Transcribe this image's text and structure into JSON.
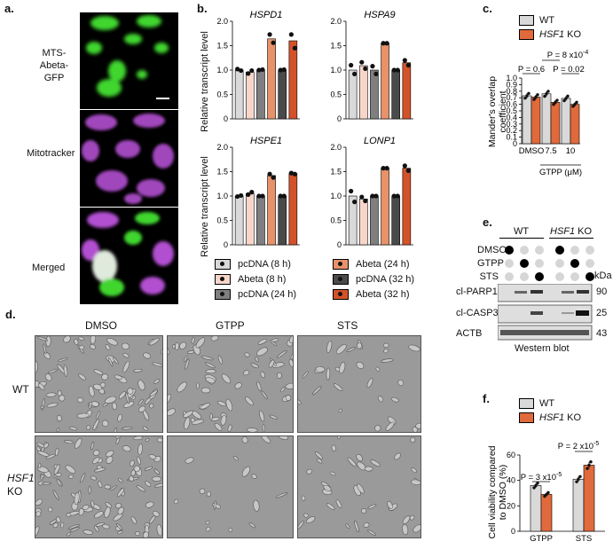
{
  "panel_letters": {
    "a": "a.",
    "b": "b.",
    "c": "c.",
    "d": "d.",
    "e": "e.",
    "f": "f."
  },
  "panel_a": {
    "row_labels": [
      "MTS-",
      "Abeta-",
      "GFP",
      "Mitotracker",
      "Merged"
    ]
  },
  "panel_b": {
    "ylabel": "Relative transcript level",
    "legend": [
      {
        "label": "pcDNA (8 h)",
        "color": "#d9d9d9"
      },
      {
        "label": "Abeta (8 h)",
        "color": "#f7d6c9"
      },
      {
        "label": "pcDNA (24 h)",
        "color": "#7f7f7f"
      },
      {
        "label": "Abeta (24 h)",
        "color": "#e8926a"
      },
      {
        "label": "pcDNA (32 h)",
        "color": "#4a4a4a"
      },
      {
        "label": "Abeta (32 h)",
        "color": "#d4522a"
      }
    ]
  },
  "panel_c": {
    "legend": [
      {
        "label": "WT",
        "color": "#d9d9d9"
      },
      {
        "label": "HSF1",
        "suffix": " KO",
        "color": "#e06a3b"
      }
    ],
    "ylabel_line1": "Mander's overlap",
    "ylabel_line2": "coefficient",
    "pvals": [
      "P = 0.6",
      "P = 8 x10",
      "-4",
      "P = 0.02"
    ],
    "xticks": [
      "DMSO",
      "7.5",
      "10"
    ],
    "xgroup_label": "GTPP (μM)"
  },
  "panel_d": {
    "col_labels": [
      "DMSO",
      "GTPP",
      "STS"
    ],
    "row_labels": [
      "WT",
      "HSF1",
      "KO"
    ]
  },
  "panel_e": {
    "group_labels": [
      "WT",
      "HSF1",
      " KO"
    ],
    "treatments": [
      "DMSO",
      "GTPP",
      "STS"
    ],
    "kda_label": "kDa",
    "bands": [
      {
        "name": "cl-PARP1",
        "kda": "90"
      },
      {
        "name": "cl-CASP3",
        "kda": "25"
      },
      {
        "name": "ACTB",
        "kda": "43"
      }
    ],
    "caption": "Western blot"
  },
  "panel_f": {
    "legend": [
      {
        "label": "WT",
        "color": "#d9d9d9"
      },
      {
        "label": "HSF1",
        "suffix": " KO",
        "color": "#e06a3b"
      }
    ],
    "ylabel_line1": "Cell viability compared",
    "ylabel_line2": "to DMSO (%)",
    "pvals": [
      "P = 3 x10",
      "-5",
      "P = 2 x10",
      "-5"
    ],
    "xticks": [
      "GTPP",
      "STS"
    ]
  },
  "chart_data": [
    {
      "type": "bar",
      "title": "HSPD1",
      "ylabel": "Relative transcript level",
      "ylim": [
        0,
        2.0
      ],
      "yticks": [
        "0",
        "0.5",
        "1.0",
        "1.5",
        "2.0"
      ],
      "categories": [
        "pcDNA (8 h)",
        "Abeta (8 h)",
        "pcDNA (24 h)",
        "Abeta (24 h)",
        "pcDNA (32 h)",
        "Abeta (32 h)"
      ],
      "values": [
        1.0,
        0.96,
        1.0,
        1.64,
        1.0,
        1.6
      ],
      "points": [
        [
          1.02,
          0.99
        ],
        [
          0.93,
          0.99
        ],
        [
          1.0,
          1.01
        ],
        [
          1.73,
          1.56
        ],
        [
          1.0,
          1.01
        ],
        [
          1.73,
          1.45
        ]
      ]
    },
    {
      "type": "bar",
      "title": "HSPA9",
      "ylabel": "",
      "ylim": [
        0,
        2.0
      ],
      "yticks": [
        "0",
        "0.5",
        "1.0",
        "1.5",
        "2.0"
      ],
      "categories": [
        "pcDNA (8 h)",
        "Abeta (8 h)",
        "pcDNA (24 h)",
        "Abeta (24 h)",
        "pcDNA (32 h)",
        "Abeta (32 h)"
      ],
      "values": [
        1.0,
        1.09,
        1.0,
        1.55,
        1.0,
        1.15
      ],
      "points": [
        [
          1.1,
          0.92
        ],
        [
          1.16,
          1.03
        ],
        [
          1.08,
          0.92
        ],
        [
          1.55,
          1.55
        ],
        [
          1.0,
          1.0
        ],
        [
          1.2,
          1.1
        ]
      ]
    },
    {
      "type": "bar",
      "title": "HSPE1",
      "ylabel": "Relative transcript level",
      "ylim": [
        0,
        2.0
      ],
      "yticks": [
        "0",
        "0.5",
        "1.0",
        "1.5",
        "2.0"
      ],
      "categories": [
        "pcDNA (8 h)",
        "Abeta (8 h)",
        "pcDNA (24 h)",
        "Abeta (24 h)",
        "pcDNA (32 h)",
        "Abeta (32 h)"
      ],
      "values": [
        1.0,
        1.05,
        1.0,
        1.42,
        1.0,
        1.46
      ],
      "points": [
        [
          0.99,
          1.01
        ],
        [
          1.03,
          1.08
        ],
        [
          1.0,
          1.0
        ],
        [
          1.45,
          1.38
        ],
        [
          1.0,
          1.0
        ],
        [
          1.47,
          1.45
        ]
      ]
    },
    {
      "type": "bar",
      "title": "LONP1",
      "ylabel": "",
      "ylim": [
        0,
        2.0
      ],
      "yticks": [
        "0",
        "0.5",
        "1.0",
        "1.5",
        "2.0"
      ],
      "categories": [
        "pcDNA (8 h)",
        "Abeta (8 h)",
        "pcDNA (24 h)",
        "Abeta (24 h)",
        "pcDNA (32 h)",
        "Abeta (32 h)"
      ],
      "values": [
        1.0,
        0.94,
        1.0,
        1.57,
        1.0,
        1.57
      ],
      "points": [
        [
          1.1,
          0.88
        ],
        [
          0.98,
          0.9
        ],
        [
          1.0,
          1.0
        ],
        [
          1.57,
          1.57
        ],
        [
          1.0,
          1.0
        ],
        [
          1.62,
          1.52
        ]
      ]
    },
    {
      "type": "bar",
      "title": "",
      "ylabel": "Mander's overlap coefficient",
      "ylim": [
        0,
        1.0
      ],
      "yticks": [
        "0",
        "0.1",
        "0.2",
        "0.3",
        "0.4",
        "0.5",
        "0.6",
        "0.7",
        "0.8",
        "0.9",
        "1.0"
      ],
      "categories": [
        "DMSO",
        "7.5",
        "10"
      ],
      "series": [
        {
          "name": "WT",
          "values": [
            0.73,
            0.76,
            0.69
          ]
        },
        {
          "name": "HSF1 KO",
          "values": [
            0.71,
            0.63,
            0.6
          ]
        }
      ]
    },
    {
      "type": "bar",
      "title": "",
      "ylabel": "Cell viability compared to DMSO (%)",
      "ylim": [
        0,
        60
      ],
      "yticks": [
        "0",
        "20",
        "40",
        "60"
      ],
      "categories": [
        "GTPP",
        "STS"
      ],
      "series": [
        {
          "name": "WT",
          "values": [
            36,
            41
          ]
        },
        {
          "name": "HSF1 KO",
          "values": [
            29,
            52
          ]
        }
      ]
    }
  ]
}
